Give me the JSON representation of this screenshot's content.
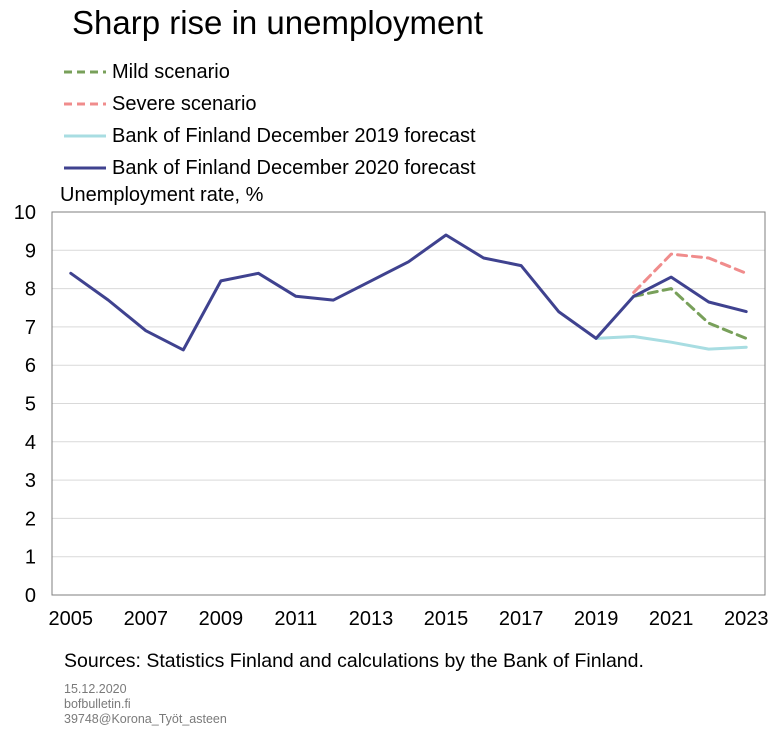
{
  "title": "Sharp rise in unemployment",
  "sources": "Sources: Statistics Finland and calculations by the Bank of Finland.",
  "meta": [
    "15.12.2020",
    "bofbulletin.fi",
    "39748@Korona_Työt_asteen"
  ],
  "chart_data": {
    "type": "line",
    "ylabel": "Unemployment  rate, %",
    "ylim": [
      0,
      10
    ],
    "yticks": [
      0,
      1,
      2,
      3,
      4,
      5,
      6,
      7,
      8,
      9,
      10
    ],
    "xlim": [
      2004.5,
      2023.5
    ],
    "xticks": [
      2005,
      2007,
      2009,
      2011,
      2013,
      2015,
      2017,
      2019,
      2021,
      2023
    ],
    "grid": true,
    "legend_position": "top-left",
    "series": [
      {
        "name": "Mild scenario",
        "color": "#78a05a",
        "dash": true,
        "x": [
          2020,
          2021,
          2022,
          2023
        ],
        "y": [
          7.8,
          8.0,
          7.1,
          6.7
        ]
      },
      {
        "name": "Severe scenario",
        "color": "#f08c8c",
        "dash": true,
        "x": [
          2020,
          2021,
          2022,
          2023
        ],
        "y": [
          7.9,
          8.9,
          8.8,
          8.4
        ]
      },
      {
        "name": "Bank of Finland December 2019 forecast",
        "color": "#a8dde2",
        "dash": false,
        "x": [
          2019,
          2020,
          2021,
          2022,
          2023
        ],
        "y": [
          6.7,
          6.75,
          6.6,
          6.42,
          6.47
        ]
      },
      {
        "name": "Bank of Finland December 2020 forecast",
        "color": "#3f428f",
        "dash": false,
        "x": [
          2005,
          2006,
          2007,
          2008,
          2009,
          2010,
          2011,
          2012,
          2013,
          2014,
          2015,
          2016,
          2017,
          2018,
          2019,
          2020,
          2021,
          2022,
          2023
        ],
        "y": [
          8.4,
          7.7,
          6.9,
          6.4,
          8.2,
          8.4,
          7.8,
          7.7,
          8.2,
          8.7,
          9.4,
          8.8,
          8.6,
          7.4,
          6.7,
          7.8,
          8.3,
          7.65,
          7.4
        ]
      }
    ]
  }
}
